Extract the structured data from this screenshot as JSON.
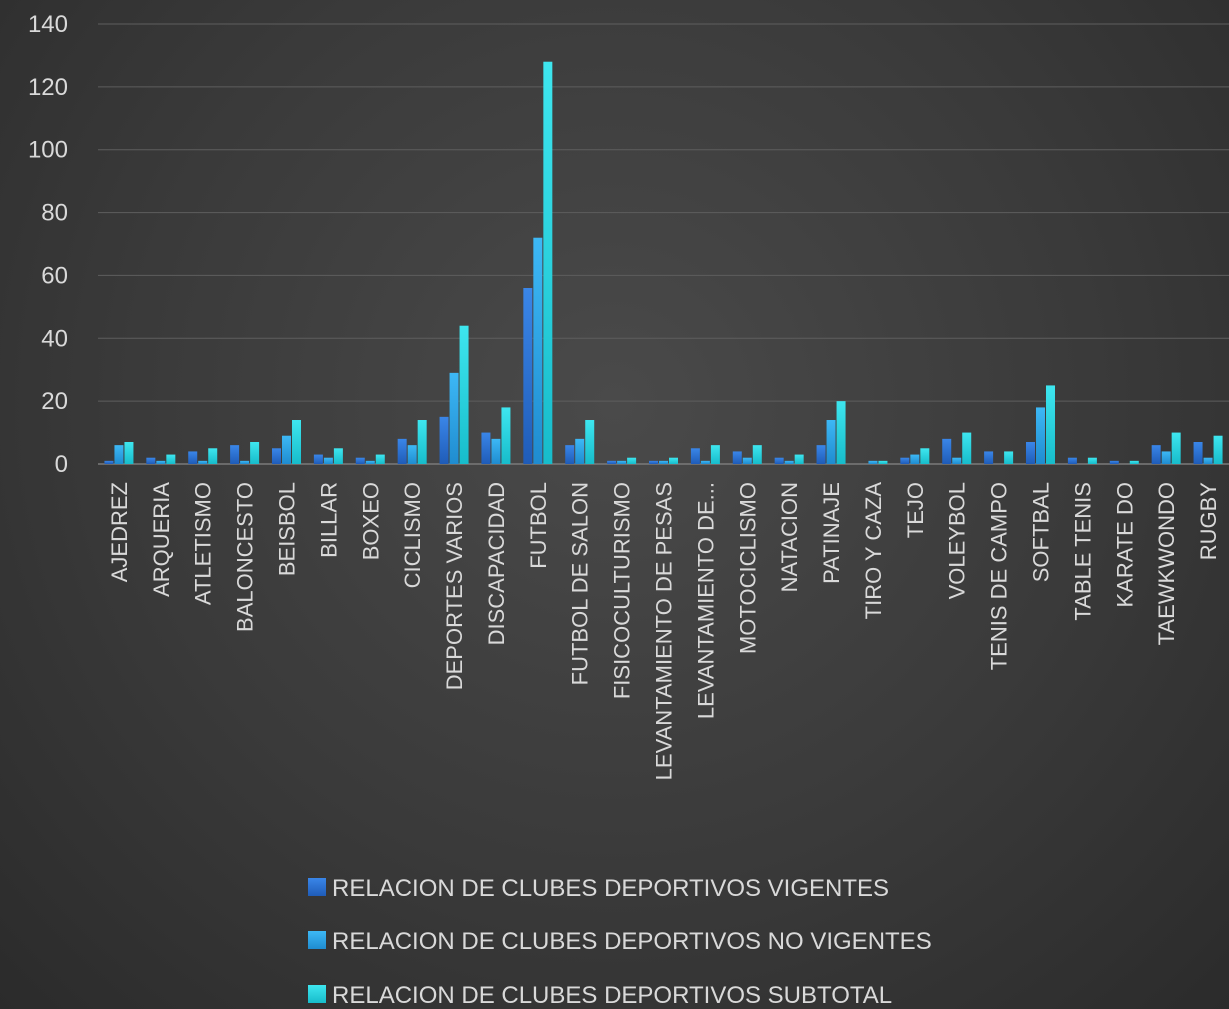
{
  "chart_data": {
    "type": "bar",
    "title": "",
    "xlabel": "",
    "ylabel": "",
    "ylim": [
      0,
      140
    ],
    "yticks": [
      0,
      20,
      40,
      60,
      80,
      100,
      120,
      140
    ],
    "grid": true,
    "legend_position": "bottom",
    "categories": [
      "AJEDREZ",
      "ARQUERIA",
      "ATLETISMO",
      "BALONCESTO",
      "BEISBOL",
      "BILLAR",
      "BOXEO",
      "CICLISMO",
      "DEPORTES VARIOS",
      "DISCAPACIDAD",
      "FUTBOL",
      "FUTBOL DE SALON",
      "FISICOCULTURISMO",
      "LEVANTAMIENTO DE PESAS",
      "LEVANTAMIENTO DE...",
      "MOTOCICLISMO",
      "NATACION",
      "PATINAJE",
      "TIRO Y CAZA",
      "TEJO",
      "VOLEYBOL",
      "TENIS DE CAMPO",
      "SOFTBAL",
      "TABLE TENIS",
      "KARATE DO",
      "TAEWKWONDO",
      "RUGBY"
    ],
    "series": [
      {
        "name": "RELACION DE CLUBES DEPORTIVOS VIGENTES",
        "color": "#2b6fd1",
        "values": [
          1,
          2,
          4,
          6,
          5,
          3,
          2,
          8,
          15,
          10,
          56,
          6,
          1,
          1,
          5,
          4,
          2,
          6,
          0,
          2,
          8,
          4,
          7,
          2,
          1,
          6,
          7
        ]
      },
      {
        "name": "RELACION DE CLUBES DEPORTIVOS NO VIGENTES",
        "color": "#29a3e6",
        "values": [
          6,
          1,
          1,
          1,
          9,
          2,
          1,
          6,
          29,
          8,
          72,
          8,
          1,
          1,
          1,
          2,
          1,
          14,
          1,
          3,
          2,
          0,
          18,
          0,
          0,
          4,
          2
        ]
      },
      {
        "name": "RELACION DE CLUBES DEPORTIVOS SUBTOTAL",
        "color": "#1ed3df",
        "values": [
          7,
          3,
          5,
          7,
          14,
          5,
          3,
          14,
          44,
          18,
          128,
          14,
          2,
          2,
          6,
          6,
          3,
          20,
          1,
          5,
          10,
          4,
          25,
          2,
          1,
          10,
          9
        ]
      }
    ]
  }
}
